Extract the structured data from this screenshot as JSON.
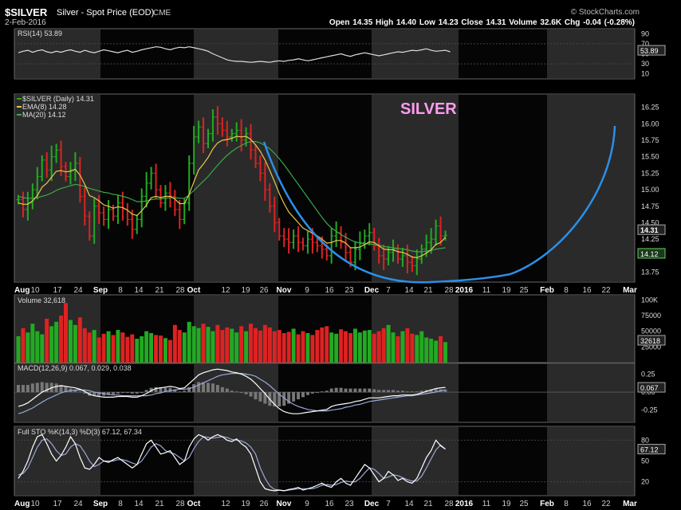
{
  "header": {
    "symbol": "$SILVER",
    "name": "Silver - Spot Price (EOD)",
    "exchange": "CME",
    "date": "2-Feb-2016",
    "ohlc": "Open 14.35  High 14.40  Low 14.23  Close 14.31  Volume 32.6K  Chg -0.04 (-0.28%)",
    "copyright": "© StockCharts.com"
  },
  "colors": {
    "up": "#22aa22",
    "down": "#dd2222",
    "ema": "#e6c84a",
    "ma": "#3aa84a",
    "cup": "#2b8fe8",
    "annotation": "#ff9cf0",
    "band": "#2a2a2a"
  },
  "chart_data": [
    {
      "type": "line",
      "panel": "rsi",
      "label": "RSI(14) 53.89",
      "current": "53.89",
      "yticks": [
        "90",
        "70",
        "50",
        "30",
        "10"
      ],
      "ylim": [
        0,
        100
      ],
      "series": [
        {
          "name": "RSI(14)",
          "values": [
            52,
            55,
            57,
            53,
            56,
            58,
            54,
            52,
            55,
            53,
            56,
            58,
            55,
            53,
            57,
            54,
            52,
            55,
            58,
            56,
            54,
            52,
            55,
            57,
            53,
            55,
            58,
            60,
            62,
            64,
            63,
            60,
            58,
            61,
            63,
            62,
            64,
            62,
            60,
            58,
            55,
            50,
            46,
            42,
            38,
            36,
            35,
            35,
            34,
            33,
            34,
            35,
            34,
            33,
            35,
            36,
            35,
            37,
            38,
            40,
            38,
            36,
            38,
            40,
            42,
            44,
            46,
            48,
            50,
            47,
            45,
            48,
            50,
            52,
            50,
            48,
            46,
            48,
            50,
            52,
            54,
            53,
            55,
            57,
            56,
            58,
            60,
            57,
            55,
            56,
            57,
            53.89
          ]
        }
      ]
    },
    {
      "type": "line",
      "panel": "price",
      "title": "$SILVER (Daily) 14.31",
      "legend": [
        "$SILVER (Daily) 14.31",
        "EMA(8) 14.28",
        "MA(20) 14.12"
      ],
      "annotation": "SILVER",
      "yticks": [
        "16.25",
        "16.00",
        "15.75",
        "15.50",
        "15.25",
        "15.00",
        "14.75",
        "14.50",
        "14.25",
        "14.00",
        "13.75"
      ],
      "ylim": [
        13.6,
        16.45
      ],
      "price_tags": [
        "14.31",
        "14.12"
      ],
      "series": [
        {
          "name": "$SILVER (Daily)",
          "values": [
            14.85,
            14.7,
            14.8,
            15.0,
            15.2,
            15.45,
            15.3,
            15.5,
            15.6,
            15.35,
            15.2,
            15.3,
            15.4,
            14.9,
            14.6,
            14.3,
            14.75,
            14.65,
            14.55,
            14.7,
            14.6,
            14.8,
            14.7,
            14.55,
            14.4,
            14.55,
            14.9,
            15.1,
            15.25,
            15.0,
            14.8,
            14.95,
            14.9,
            14.7,
            14.55,
            14.8,
            15.4,
            15.8,
            15.95,
            15.7,
            15.85,
            16.1,
            16.0,
            15.9,
            15.8,
            15.85,
            15.9,
            15.75,
            15.85,
            15.6,
            15.4,
            15.25,
            15.0,
            14.75,
            14.5,
            14.3,
            14.25,
            14.2,
            14.3,
            14.2,
            14.15,
            14.25,
            14.2,
            14.15,
            14.1,
            14.0,
            14.3,
            14.35,
            14.2,
            14.05,
            13.9,
            14.1,
            14.2,
            14.3,
            14.35,
            14.15,
            14.0,
            13.95,
            14.05,
            14.1,
            13.95,
            14.0,
            13.9,
            13.85,
            13.95,
            14.1,
            14.2,
            14.25,
            14.45,
            14.3,
            14.31
          ]
        },
        {
          "name": "EMA(8)",
          "values": [
            14.8,
            14.78,
            14.78,
            14.83,
            14.91,
            15.04,
            15.1,
            15.19,
            15.28,
            15.29,
            15.27,
            15.28,
            15.31,
            15.22,
            15.08,
            14.91,
            14.88,
            14.83,
            14.77,
            14.75,
            14.72,
            14.74,
            14.73,
            14.69,
            14.63,
            14.61,
            14.68,
            14.77,
            14.88,
            14.9,
            14.88,
            14.9,
            14.9,
            14.86,
            14.79,
            14.79,
            14.93,
            15.12,
            15.3,
            15.39,
            15.49,
            15.62,
            15.71,
            15.75,
            15.76,
            15.78,
            15.81,
            15.8,
            15.81,
            15.76,
            15.68,
            15.58,
            15.45,
            15.29,
            15.12,
            14.94,
            14.79,
            14.66,
            14.58,
            14.5,
            14.42,
            14.38,
            14.34,
            14.3,
            14.25,
            14.19,
            14.2,
            14.23,
            14.23,
            14.19,
            14.12,
            14.12,
            14.13,
            14.17,
            14.21,
            14.2,
            14.15,
            14.1,
            14.09,
            14.09,
            14.06,
            14.05,
            14.02,
            13.98,
            13.97,
            14.0,
            14.04,
            14.09,
            14.17,
            14.2,
            14.28
          ]
        },
        {
          "name": "MA(20)",
          "values": [
            14.9,
            14.88,
            14.87,
            14.87,
            14.88,
            14.9,
            14.92,
            14.95,
            14.99,
            15.02,
            15.04,
            15.06,
            15.08,
            15.07,
            15.05,
            15.02,
            15.0,
            14.98,
            14.96,
            14.95,
            14.93,
            14.92,
            14.9,
            14.88,
            14.85,
            14.82,
            14.82,
            14.83,
            14.85,
            14.86,
            14.86,
            14.87,
            14.88,
            14.88,
            14.87,
            14.87,
            14.92,
            14.99,
            15.06,
            15.13,
            15.2,
            15.29,
            15.37,
            15.45,
            15.52,
            15.58,
            15.63,
            15.67,
            15.71,
            15.73,
            15.73,
            15.71,
            15.67,
            15.62,
            15.55,
            15.47,
            15.38,
            15.28,
            15.18,
            15.08,
            14.98,
            14.88,
            14.78,
            14.68,
            14.58,
            14.49,
            14.42,
            14.37,
            14.32,
            14.28,
            14.24,
            14.21,
            14.19,
            14.18,
            14.18,
            14.17,
            14.16,
            14.14,
            14.13,
            14.12,
            14.11,
            14.1,
            14.09,
            14.07,
            14.06,
            14.06,
            14.07,
            14.08,
            14.1,
            14.11,
            14.12
          ]
        }
      ]
    },
    {
      "type": "bar",
      "panel": "volume",
      "label": "Volume 32,618",
      "current": "32618",
      "yticks": [
        "100K",
        "75000",
        "50000",
        "25000"
      ],
      "ylim": [
        0,
        108000
      ],
      "series": [
        {
          "name": "Volume",
          "values": [
            42000,
            55000,
            48000,
            62000,
            50000,
            45000,
            70000,
            58000,
            65000,
            75000,
            95000,
            68000,
            60000,
            72000,
            55000,
            48000,
            52000,
            40000,
            46000,
            50000,
            44000,
            52000,
            48000,
            41000,
            45000,
            38000,
            42000,
            50000,
            47000,
            44000,
            43000,
            39000,
            36000,
            60000,
            52000,
            48000,
            65000,
            58000,
            55000,
            62000,
            57000,
            50000,
            60000,
            52000,
            56000,
            54000,
            48000,
            58000,
            50000,
            62000,
            55000,
            51000,
            60000,
            56000,
            50000,
            52000,
            47000,
            49000,
            54000,
            45000,
            50000,
            47000,
            44000,
            52000,
            56000,
            58000,
            48000,
            46000,
            53000,
            50000,
            47000,
            54000,
            48000,
            51000,
            52000,
            46000,
            50000,
            55000,
            60000,
            48000,
            42000,
            50000,
            55000,
            46000,
            44000,
            50000,
            40000,
            38000,
            35000,
            42000,
            32618
          ]
        }
      ]
    },
    {
      "type": "line",
      "panel": "macd",
      "label": "MACD(12,26,9) 0.067, 0.029, 0.038",
      "current": "0.067",
      "yticks": [
        "0.25",
        "0.00",
        "-0.25"
      ],
      "ylim": [
        -0.42,
        0.4
      ],
      "series": [
        {
          "name": "MACD",
          "values": [
            -0.2,
            -0.18,
            -0.15,
            -0.1,
            -0.05,
            0.0,
            0.03,
            0.06,
            0.08,
            0.09,
            0.08,
            0.07,
            0.06,
            0.04,
            0.01,
            -0.03,
            -0.05,
            -0.06,
            -0.07,
            -0.07,
            -0.07,
            -0.06,
            -0.06,
            -0.06,
            -0.07,
            -0.07,
            -0.05,
            -0.02,
            0.02,
            0.05,
            0.06,
            0.07,
            0.08,
            0.07,
            0.05,
            0.06,
            0.12,
            0.18,
            0.24,
            0.27,
            0.29,
            0.31,
            0.32,
            0.31,
            0.3,
            0.28,
            0.27,
            0.25,
            0.22,
            0.18,
            0.12,
            0.05,
            -0.02,
            -0.1,
            -0.17,
            -0.23,
            -0.27,
            -0.29,
            -0.3,
            -0.3,
            -0.29,
            -0.28,
            -0.27,
            -0.26,
            -0.25,
            -0.24,
            -0.2,
            -0.18,
            -0.17,
            -0.16,
            -0.15,
            -0.13,
            -0.12,
            -0.1,
            -0.08,
            -0.08,
            -0.08,
            -0.07,
            -0.06,
            -0.05,
            -0.05,
            -0.04,
            -0.04,
            -0.04,
            -0.03,
            -0.01,
            0.01,
            0.03,
            0.05,
            0.06,
            0.067
          ]
        },
        {
          "name": "Signal",
          "values": [
            -0.3,
            -0.28,
            -0.25,
            -0.22,
            -0.18,
            -0.14,
            -0.1,
            -0.07,
            -0.04,
            -0.01,
            0.01,
            0.02,
            0.03,
            0.03,
            0.03,
            0.02,
            0.0,
            -0.01,
            -0.02,
            -0.03,
            -0.04,
            -0.04,
            -0.05,
            -0.05,
            -0.05,
            -0.05,
            -0.05,
            -0.05,
            -0.04,
            -0.02,
            -0.01,
            0.01,
            0.02,
            0.03,
            0.04,
            0.04,
            0.05,
            0.07,
            0.1,
            0.13,
            0.16,
            0.19,
            0.22,
            0.24,
            0.25,
            0.26,
            0.26,
            0.26,
            0.25,
            0.24,
            0.22,
            0.18,
            0.14,
            0.09,
            0.03,
            -0.03,
            -0.08,
            -0.13,
            -0.17,
            -0.2,
            -0.22,
            -0.24,
            -0.25,
            -0.26,
            -0.26,
            -0.26,
            -0.25,
            -0.24,
            -0.23,
            -0.21,
            -0.2,
            -0.18,
            -0.17,
            -0.15,
            -0.13,
            -0.12,
            -0.11,
            -0.1,
            -0.09,
            -0.08,
            -0.07,
            -0.06,
            -0.05,
            -0.05,
            -0.04,
            -0.03,
            -0.02,
            -0.01,
            0.0,
            0.02,
            0.029
          ]
        }
      ]
    },
    {
      "type": "line",
      "panel": "sto",
      "label": "Full STO %K(14,3) %D(3) 67.12, 67.34",
      "current": "67.12",
      "yticks": [
        "80",
        "50",
        "20"
      ],
      "ylim": [
        0,
        100
      ],
      "series": [
        {
          "name": "%K",
          "values": [
            25,
            35,
            50,
            70,
            85,
            88,
            75,
            60,
            50,
            58,
            70,
            85,
            75,
            55,
            40,
            38,
            45,
            55,
            50,
            48,
            52,
            55,
            50,
            45,
            40,
            45,
            60,
            75,
            80,
            70,
            60,
            62,
            65,
            55,
            45,
            50,
            70,
            82,
            88,
            85,
            80,
            85,
            88,
            85,
            80,
            78,
            82,
            75,
            70,
            60,
            40,
            20,
            10,
            8,
            7,
            8,
            7,
            9,
            10,
            12,
            8,
            10,
            12,
            15,
            18,
            14,
            12,
            20,
            25,
            18,
            15,
            25,
            35,
            45,
            40,
            30,
            20,
            25,
            35,
            30,
            22,
            25,
            20,
            18,
            25,
            40,
            55,
            65,
            80,
            72,
            67.12
          ]
        },
        {
          "name": "%D",
          "values": [
            30,
            32,
            40,
            55,
            70,
            80,
            82,
            75,
            65,
            58,
            60,
            70,
            75,
            72,
            62,
            50,
            42,
            45,
            50,
            50,
            50,
            52,
            52,
            50,
            47,
            45,
            50,
            60,
            70,
            75,
            72,
            65,
            62,
            60,
            55,
            50,
            55,
            68,
            78,
            85,
            84,
            83,
            84,
            85,
            84,
            81,
            80,
            79,
            76,
            70,
            60,
            40,
            25,
            14,
            9,
            8,
            7,
            8,
            9,
            10,
            10,
            10,
            10,
            12,
            15,
            16,
            15,
            16,
            19,
            21,
            20,
            20,
            25,
            33,
            40,
            38,
            32,
            25,
            27,
            30,
            29,
            26,
            23,
            21,
            21,
            28,
            40,
            53,
            66,
            73,
            67.34
          ]
        }
      ]
    }
  ],
  "x_axis": {
    "labels": [
      "Aug",
      "10",
      "17",
      "24",
      "Sep",
      "8",
      "14",
      "21",
      "28",
      "Oct",
      "12",
      "19",
      "26",
      "Nov",
      "9",
      "16",
      "23",
      "Dec",
      "7",
      "14",
      "21",
      "28",
      "2016",
      "11",
      "19",
      "25",
      "Feb",
      "8",
      "16",
      "22",
      "Mar"
    ],
    "bold": [
      "Aug",
      "Sep",
      "Oct",
      "Nov",
      "Dec",
      "2016",
      "Feb",
      "Mar"
    ]
  }
}
